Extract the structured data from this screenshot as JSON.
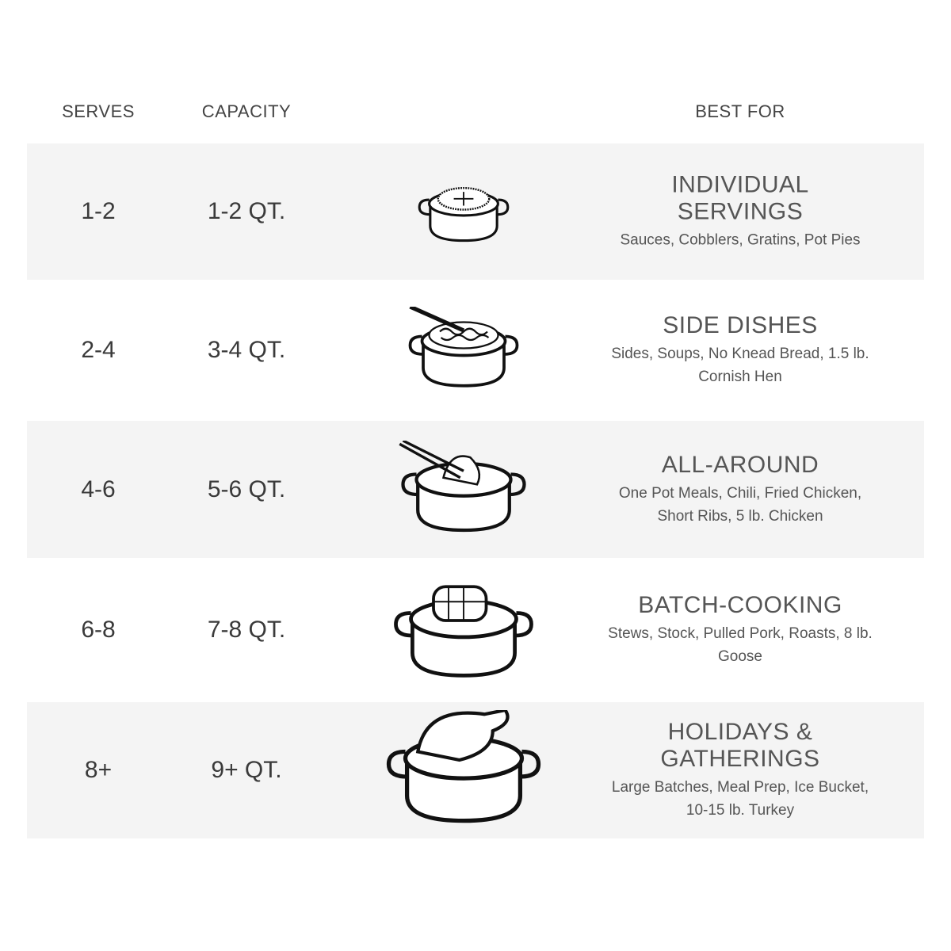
{
  "headers": {
    "serves": "SERVES",
    "capacity": "CAPACITY",
    "best_for": "BEST FOR"
  },
  "rows": [
    {
      "serves": "1-2",
      "capacity": "1-2 QT.",
      "title": "INDIVIDUAL SERVINGS",
      "desc": "Sauces, Cobblers, Gratins, Pot Pies",
      "icon": "pot-pie-icon"
    },
    {
      "serves": "2-4",
      "capacity": "3-4 QT.",
      "title": "SIDE DISHES",
      "desc": "Sides, Soups, No Knead Bread, 1.5 lb. Cornish Hen",
      "icon": "pasta-pot-icon"
    },
    {
      "serves": "4-6",
      "capacity": "5-6 QT.",
      "title": "ALL-AROUND",
      "desc": "One Pot Meals, Chili, Fried Chicken, Short Ribs, 5 lb. Chicken",
      "icon": "chicken-pot-icon"
    },
    {
      "serves": "6-8",
      "capacity": "7-8 QT.",
      "title": "BATCH-COOKING",
      "desc": "Stews, Stock, Pulled Pork, Roasts, 8 lb. Goose",
      "icon": "roast-pot-icon"
    },
    {
      "serves": "8+",
      "capacity": "9+ QT.",
      "title": "HOLIDAYS & GATHERINGS",
      "desc": "Large Batches, Meal Prep, Ice Bucket, 10-15 lb. Turkey",
      "icon": "turkey-pot-icon"
    }
  ],
  "colors": {
    "row_shade": "#f4f4f4",
    "text": "#3a3a3a"
  }
}
